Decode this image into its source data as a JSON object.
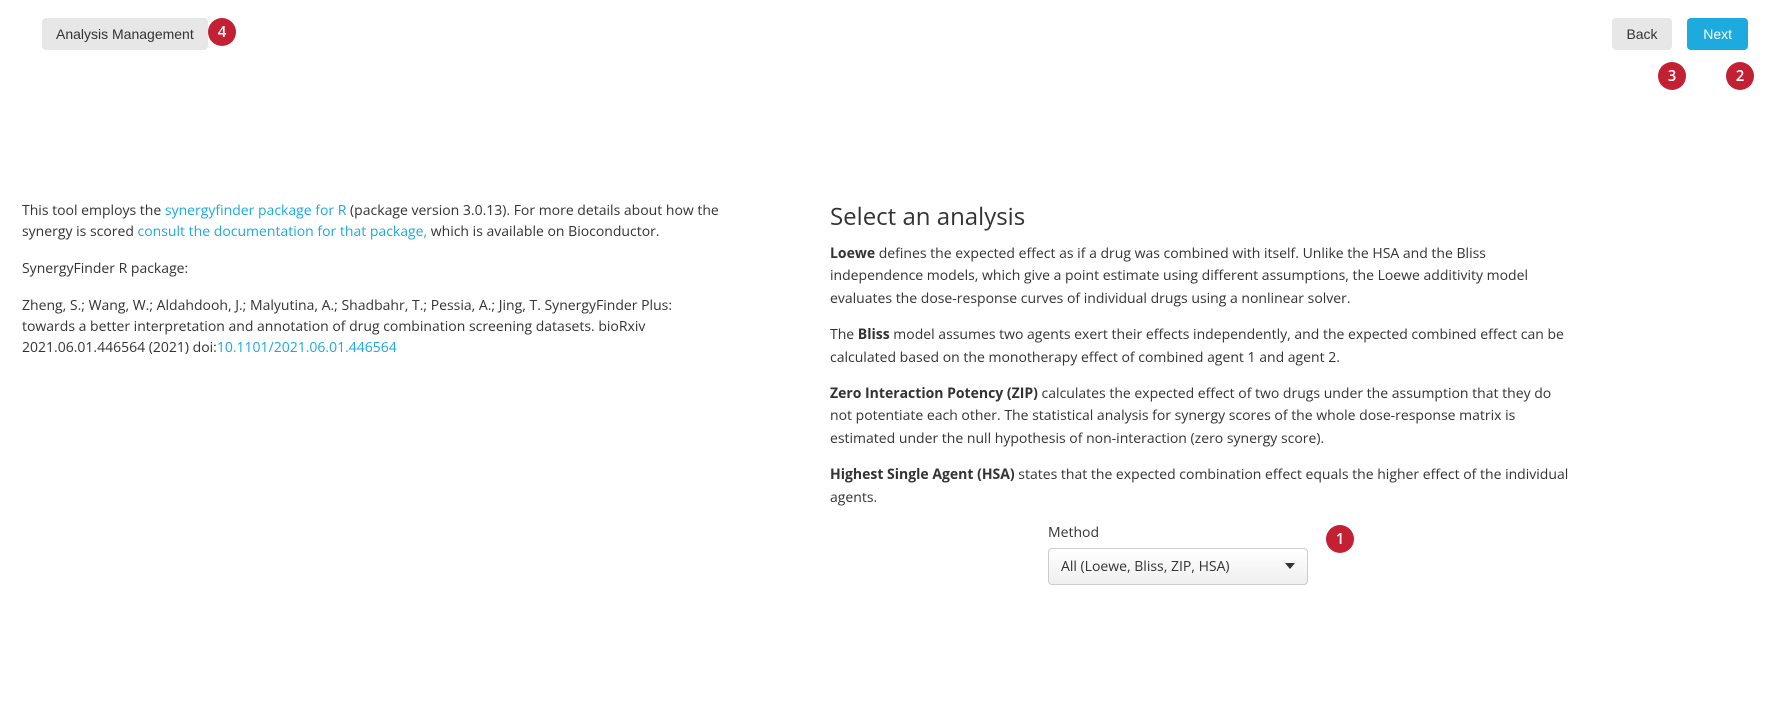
{
  "topbar": {
    "analysis_management": "Analysis Management",
    "back": "Back",
    "next": "Next"
  },
  "badges": {
    "b1": "1",
    "b2": "2",
    "b3": "3",
    "b4": "4"
  },
  "left": {
    "p1_a": "This tool employs the ",
    "p1_link": "synergyfinder package for R",
    "p1_b": " (package version 3.0.13). For more details about how the synergy is scored ",
    "p1_link2": "consult the documentation for that package,",
    "p1_c": " which is available on Bioconductor.",
    "p2": "SynergyFinder R package:",
    "p3": "Zheng, S.; Wang, W.; Aldahdooh, J.; Malyutina, A.; Shadbahr, T.; Pessia, A.; Jing, T. SynergyFinder Plus: towards a better interpretation and annotation of drug combination screening datasets. bioRxiv 2021.06.01.446564 (2021) doi:",
    "doi": "10.1101/2021.06.01.446564"
  },
  "right": {
    "h2": "Select an analysis",
    "loewe_b": "Loewe",
    "loewe": " defines the expected effect as if a drug was combined with itself. Unlike the HSA and the Bliss independence models, which give a point estimate using different assumptions, the Loewe additivity model evaluates the dose-response curves of individual drugs using a nonlinear solver.",
    "bliss_a": "The ",
    "bliss_b": "Bliss",
    "bliss": " model assumes two agents exert their effects independently, and the expected combined effect can be calculated based on the monotherapy effect of combined agent 1 and agent 2.",
    "zip_b": "Zero Interaction Potency (ZIP)",
    "zip": " calculates the expected effect of two drugs under the assumption that they do not potentiate each other. The statistical analysis for synergy scores of the whole dose-response matrix is estimated under the null hypothesis of non-interaction (zero synergy score).",
    "hsa_b": "Highest Single Agent (HSA)",
    "hsa": " states that the expected combination effect equals the higher effect of the individual agents.",
    "method_label": "Method",
    "method_value": "All (Loewe, Bliss, ZIP, HSA)"
  },
  "colors": {
    "badge_bg": "#c32034",
    "link": "#1caadf",
    "next_bg": "#1caadf",
    "grey_btn": "#e7e7e7"
  }
}
